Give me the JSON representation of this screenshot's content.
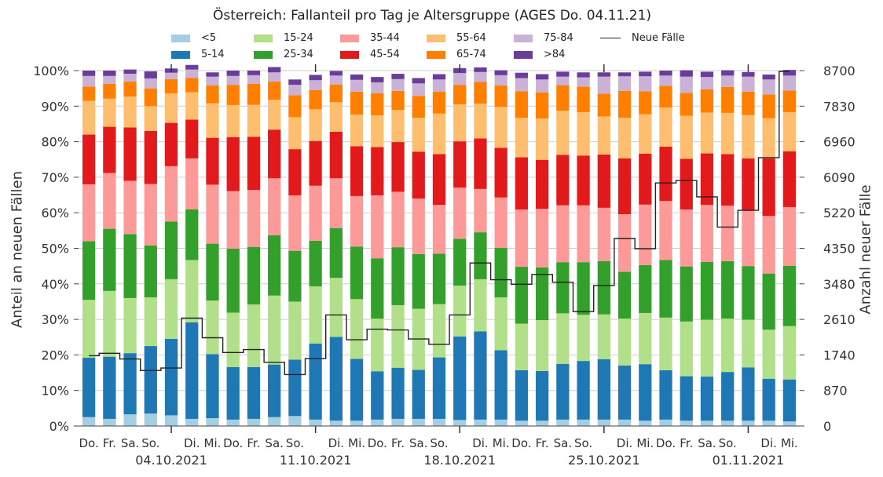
{
  "chart_data": {
    "type": "bar",
    "stacked": true,
    "title": "Österreich: Fallanteil pro Tag je Altersgruppe (AGES Do. 04.11.21)",
    "ylabel": "Anteil an neuen Fällen",
    "y2label": "Anzahl neuer Fälle",
    "ylim": [
      0,
      100
    ],
    "y2lim": [
      0,
      8700
    ],
    "yticks": [
      "0%",
      "10%",
      "20%",
      "30%",
      "40%",
      "50%",
      "60%",
      "70%",
      "80%",
      "90%",
      "100%"
    ],
    "y2ticks": [
      "0",
      "870",
      "1740",
      "2610",
      "3480",
      "4350",
      "5220",
      "6090",
      "6960",
      "7830",
      "8700"
    ],
    "grid": true,
    "legend_position": "top",
    "day_labels": [
      "Do.",
      "Fr.",
      "Sa.",
      "So.",
      "",
      "Di.",
      "Mi.",
      "Do.",
      "Fr.",
      "Sa.",
      "So.",
      "",
      "Di.",
      "Mi.",
      "Do.",
      "Fr.",
      "Sa.",
      "So.",
      "",
      "Di.",
      "Mi.",
      "Do.",
      "Fr.",
      "Sa.",
      "So.",
      "",
      "Di.",
      "Mi.",
      "Do.",
      "Fr.",
      "Sa.",
      "So.",
      "",
      "Di.",
      "Mi."
    ],
    "date_labels": [
      {
        "index": 4,
        "label": "04.10.2021"
      },
      {
        "index": 11,
        "label": "11.10.2021"
      },
      {
        "index": 18,
        "label": "18.10.2021"
      },
      {
        "index": 25,
        "label": "25.10.2021"
      },
      {
        "index": 32,
        "label": "01.11.2021"
      }
    ],
    "series": [
      {
        "name": "<5",
        "color": "#a6cee3",
        "values": [
          2.5,
          2.0,
          3.3,
          3.5,
          3.0,
          2.0,
          2.2,
          1.8,
          2.0,
          2.5,
          2.8,
          1.8,
          1.5,
          1.5,
          1.8,
          2.0,
          2.0,
          2.0,
          1.7,
          1.8,
          1.8,
          1.5,
          1.5,
          1.8,
          1.8,
          1.8,
          1.8,
          1.5,
          1.8,
          1.5,
          1.5,
          1.5,
          1.5,
          1.5,
          1.3
        ]
      },
      {
        "name": "5-14",
        "color": "#1f78b4",
        "values": [
          16.7,
          17.5,
          17.2,
          19.0,
          21.5,
          27.2,
          18.0,
          14.8,
          14.6,
          14.8,
          15.9,
          21.4,
          23.6,
          17.4,
          13.6,
          14.4,
          13.8,
          17.3,
          23.5,
          24.8,
          19.5,
          14.2,
          14.0,
          15.7,
          16.5,
          17.0,
          15.2,
          15.9,
          13.9,
          12.5,
          12.4,
          13.7,
          15.0,
          11.8,
          11.8
        ]
      },
      {
        "name": "15-24",
        "color": "#b2df8a",
        "values": [
          16.3,
          18.5,
          15.5,
          13.7,
          16.8,
          17.5,
          15.1,
          15.3,
          17.6,
          19.4,
          16.3,
          16.1,
          16.6,
          16.8,
          14.8,
          17.6,
          17.2,
          15.0,
          14.3,
          14.7,
          14.9,
          13.1,
          14.3,
          14.2,
          13.0,
          12.6,
          13.2,
          14.4,
          14.8,
          15.4,
          16.0,
          15.0,
          13.4,
          13.8,
          15.0
        ]
      },
      {
        "name": "25-34",
        "color": "#33a02c",
        "values": [
          16.5,
          17.5,
          18.0,
          14.6,
          16.2,
          14.3,
          16.0,
          18.0,
          16.2,
          17.0,
          14.3,
          12.8,
          14.0,
          14.8,
          17.0,
          16.3,
          15.4,
          14.2,
          13.2,
          13.2,
          13.9,
          16.0,
          14.8,
          14.4,
          14.8,
          15.0,
          13.2,
          13.5,
          16.2,
          15.5,
          16.3,
          16.2,
          15.1,
          15.8,
          17.0
        ]
      },
      {
        "name": "35-44",
        "color": "#fb9a99",
        "values": [
          16.0,
          15.7,
          15.0,
          17.3,
          15.6,
          14.3,
          16.6,
          16.2,
          16.0,
          16.0,
          15.6,
          15.5,
          14.0,
          14.2,
          17.7,
          15.6,
          15.6,
          13.7,
          14.4,
          12.2,
          14.2,
          16.1,
          16.5,
          16.0,
          16.0,
          15.0,
          16.2,
          17.0,
          16.6,
          16.0,
          16.0,
          15.6,
          15.8,
          16.2,
          16.5
        ]
      },
      {
        "name": "45-54",
        "color": "#e31a1c",
        "values": [
          14.0,
          13.0,
          15.0,
          14.9,
          12.2,
          10.9,
          13.2,
          15.2,
          15.0,
          13.7,
          13.0,
          12.6,
          13.1,
          14.0,
          13.6,
          14.0,
          13.2,
          14.3,
          13.0,
          14.2,
          14.0,
          14.7,
          13.8,
          14.2,
          14.0,
          15.0,
          15.7,
          14.3,
          15.3,
          14.3,
          14.5,
          14.5,
          14.5,
          16.2,
          15.7
        ]
      },
      {
        "name": "55-64",
        "color": "#fdbf6f",
        "values": [
          9.5,
          7.9,
          8.7,
          7.0,
          8.3,
          7.7,
          9.7,
          9.0,
          9.0,
          8.4,
          9.0,
          8.9,
          8.3,
          8.9,
          8.9,
          9.0,
          9.5,
          11.4,
          10.4,
          9.8,
          11.5,
          11.1,
          11.6,
          12.4,
          12.2,
          10.7,
          11.4,
          11.1,
          11.0,
          12.1,
          11.5,
          11.6,
          12.2,
          11.3,
          11.0
        ]
      },
      {
        "name": "65-74",
        "color": "#ff7f00",
        "values": [
          4.0,
          4.2,
          4.2,
          5.0,
          4.0,
          4.0,
          5.0,
          5.7,
          5.9,
          5.1,
          6.2,
          5.4,
          5.0,
          6.5,
          6.2,
          5.4,
          6.2,
          6.2,
          5.5,
          6.1,
          6.0,
          7.5,
          7.4,
          7.2,
          7.2,
          6.4,
          7.6,
          6.5,
          6.1,
          6.4,
          6.5,
          7.3,
          6.6,
          6.7,
          6.1
        ]
      },
      {
        "name": "75-84",
        "color": "#cab2d6",
        "values": [
          3.0,
          2.2,
          2.2,
          2.8,
          1.8,
          2.4,
          2.5,
          2.5,
          2.4,
          2.6,
          2.9,
          2.8,
          2.5,
          3.3,
          3.1,
          3.3,
          3.5,
          3.4,
          3.3,
          2.8,
          2.9,
          3.7,
          3.6,
          2.4,
          2.6,
          4.8,
          4.1,
          4.2,
          2.9,
          4.6,
          3.5,
          3.2,
          4.2,
          4.2,
          4.2
        ]
      },
      {
        "name": ">84",
        "color": "#6a3d9a",
        "values": [
          1.5,
          1.5,
          1.2,
          2.0,
          1.2,
          1.3,
          1.2,
          1.5,
          1.3,
          1.5,
          1.5,
          1.5,
          1.3,
          1.5,
          1.5,
          1.5,
          1.5,
          1.5,
          1.4,
          1.3,
          1.4,
          1.5,
          1.5,
          1.4,
          1.4,
          1.2,
          1.1,
          1.3,
          1.4,
          1.8,
          1.5,
          1.5,
          1.3,
          1.4,
          1.6
        ]
      }
    ],
    "line": {
      "name": "Neue Fälle",
      "color": "#222222",
      "values": [
        1720,
        1780,
        1640,
        1360,
        1420,
        2640,
        2160,
        1800,
        1870,
        1560,
        1260,
        1650,
        2720,
        2110,
        2370,
        2350,
        2130,
        2000,
        2720,
        3990,
        3580,
        3470,
        3710,
        3520,
        2800,
        3440,
        4590,
        4340,
        5950,
        6010,
        5610,
        4870,
        5280,
        6570,
        8680
      ]
    }
  }
}
